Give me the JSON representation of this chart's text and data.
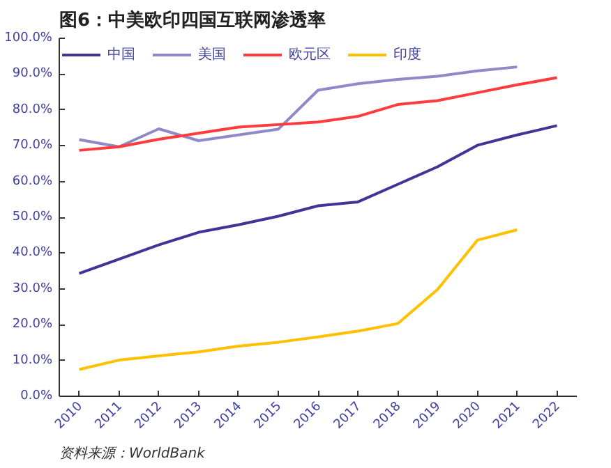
{
  "chart_data": {
    "type": "line",
    "title": "图6：中美欧印四国互联网渗透率",
    "categories": [
      "2010",
      "2011",
      "2012",
      "2013",
      "2014",
      "2015",
      "2016",
      "2017",
      "2018",
      "2019",
      "2020",
      "2021",
      "2022"
    ],
    "series": [
      {
        "name": "中国",
        "color": "#3f3596",
        "values": [
          34.3,
          38.3,
          42.3,
          45.8,
          47.9,
          50.3,
          53.2,
          54.3,
          59.2,
          64.1,
          70.1,
          73.0,
          75.6
        ]
      },
      {
        "name": "美国",
        "color": "#8e89c8",
        "values": [
          71.7,
          69.7,
          74.7,
          71.4,
          73.0,
          74.6,
          85.5,
          87.3,
          88.5,
          89.4,
          90.9,
          92.0,
          null
        ]
      },
      {
        "name": "欧元区",
        "color": "#ff3b3b",
        "values": [
          68.7,
          69.7,
          71.8,
          73.5,
          75.2,
          75.9,
          76.6,
          78.2,
          81.5,
          82.6,
          84.8,
          87.0,
          89.0
        ]
      },
      {
        "name": "印度",
        "color": "#ffc000",
        "values": [
          7.5,
          10.1,
          11.3,
          12.4,
          14.0,
          15.1,
          16.6,
          18.2,
          20.3,
          29.8,
          43.6,
          46.5,
          null
        ]
      }
    ],
    "ylim": [
      0,
      100
    ],
    "yticks": [
      {
        "value": 0,
        "label": "0.0%"
      },
      {
        "value": 10,
        "label": "10.0%"
      },
      {
        "value": 20,
        "label": "20.0%"
      },
      {
        "value": 30,
        "label": "30.0%"
      },
      {
        "value": 40,
        "label": "40.0%"
      },
      {
        "value": 50,
        "label": "50.0%"
      },
      {
        "value": 60,
        "label": "60.0%"
      },
      {
        "value": 70,
        "label": "70.0%"
      },
      {
        "value": 80,
        "label": "80.0%"
      },
      {
        "value": 90,
        "label": "90.0%"
      },
      {
        "value": 100,
        "label": "100.0%"
      }
    ],
    "grid": false,
    "legend": "top",
    "marker": "none",
    "line_style": "solid",
    "annotations": [
      "资料来源：WorldBank"
    ]
  }
}
